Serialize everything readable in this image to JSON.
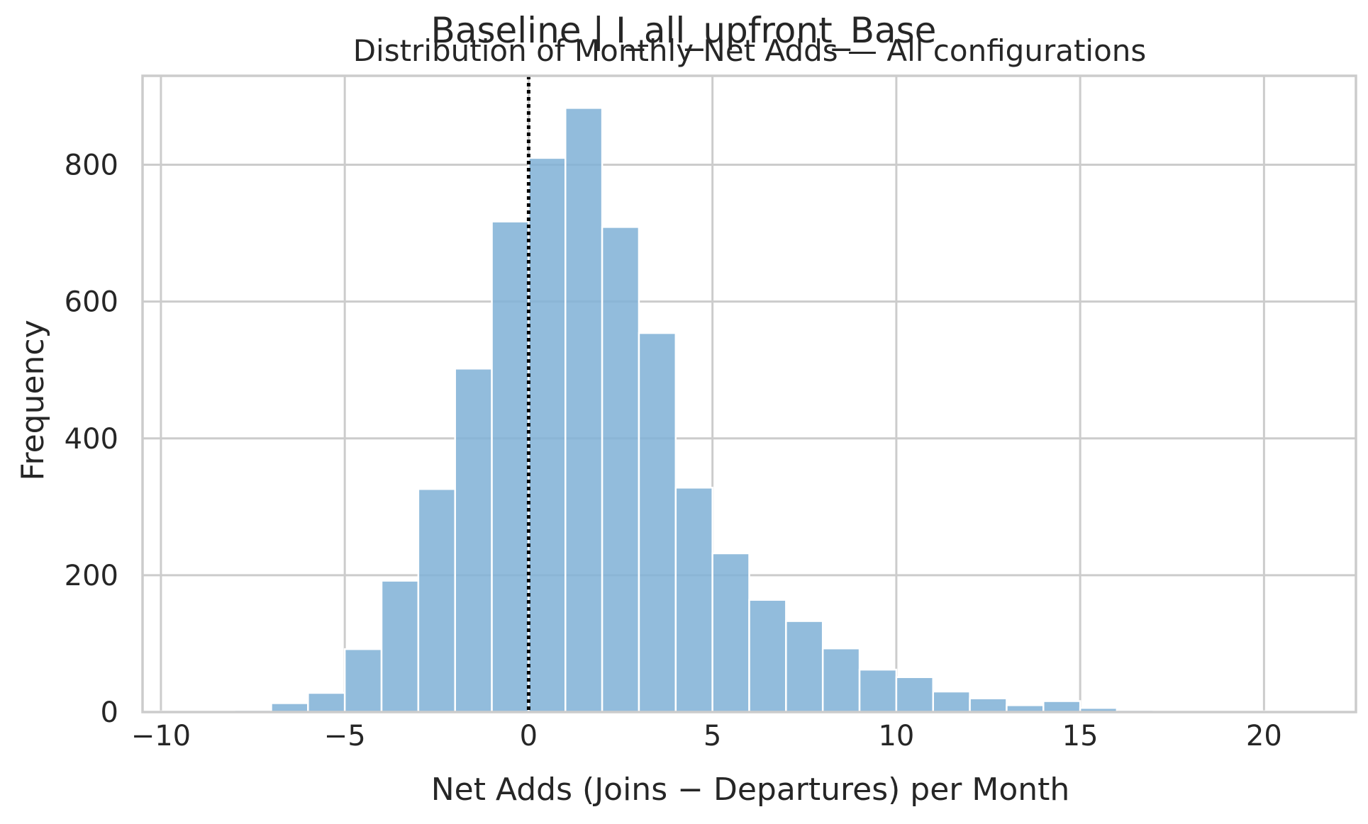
{
  "chart_data": {
    "type": "bar",
    "suptitle": "Baseline | I_all_upfront_Base",
    "title": "Distribution of Monthly Net Adds — All configurations",
    "xlabel": "Net Adds (Joins − Departures) per Month",
    "ylabel": "Frequency",
    "xlim": [
      -10.5,
      22.5
    ],
    "ylim": [
      0,
      930
    ],
    "xticks": [
      -10,
      -5,
      0,
      5,
      10,
      15,
      20
    ],
    "xtick_labels": [
      "−10",
      "−5",
      "0",
      "5",
      "10",
      "15",
      "20"
    ],
    "yticks": [
      0,
      200,
      400,
      600,
      800
    ],
    "ytick_labels": [
      "0",
      "200",
      "400",
      "600",
      "800"
    ],
    "grid": true,
    "bin_width": 1,
    "bin_starts": [
      -10,
      -9,
      -8,
      -7,
      -6,
      -5,
      -4,
      -3,
      -2,
      -1,
      0,
      1,
      2,
      3,
      4,
      5,
      6,
      7,
      8,
      9,
      10,
      11,
      12,
      13,
      14,
      15,
      16,
      17,
      18,
      19,
      20
    ],
    "values": [
      1,
      1,
      3,
      13,
      28,
      92,
      192,
      326,
      502,
      717,
      810,
      883,
      709,
      554,
      328,
      232,
      164,
      133,
      93,
      62,
      51,
      30,
      20,
      10,
      16,
      6,
      3,
      1,
      1,
      1,
      1
    ],
    "bar_color": "#7fb0d6",
    "reference_line": {
      "x": 0,
      "style": "dotted",
      "color": "#000000"
    }
  }
}
